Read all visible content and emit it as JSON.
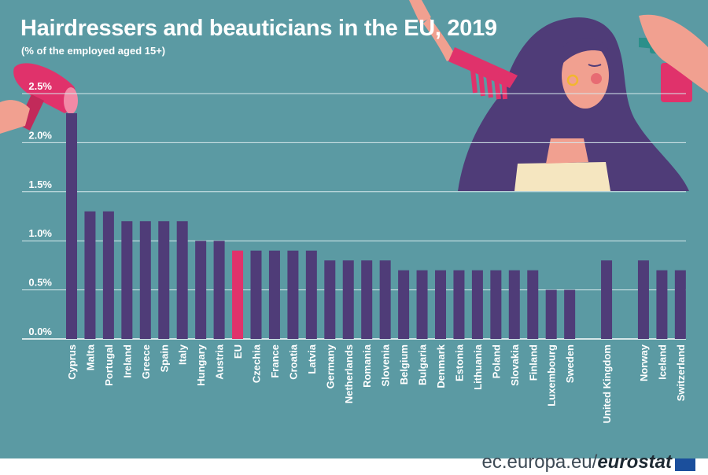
{
  "title": "Hairdressers and beauticians in the EU, 2019",
  "subtitle": "(% of the employed aged 15+)",
  "footer": {
    "domain": "ec.europa.eu/",
    "brand": "eurostat"
  },
  "colors": {
    "background": "#5b9aa3",
    "bar": "#4f3c78",
    "bar_highlight": "#e0326b",
    "grid": "#d6e8eb",
    "text": "#ffffff"
  },
  "chart_data": {
    "type": "bar",
    "title": "Hairdressers and beauticians in the EU, 2019",
    "subtitle": "(% of the employed aged 15+)",
    "xlabel": "",
    "ylabel": "",
    "ylim": [
      0,
      2.5
    ],
    "grid": true,
    "y_ticks": [
      "0.0%",
      "0.5%",
      "1.0%",
      "1.5%",
      "2.0%",
      "2.5%"
    ],
    "highlight": "EU",
    "categories": [
      "Cyprus",
      "Malta",
      "Portugal",
      "Ireland",
      "Greece",
      "Spain",
      "Italy",
      "Hungary",
      "Austria",
      "EU",
      "Czechia",
      "France",
      "Croatia",
      "Latvia",
      "Germany",
      "Netherlands",
      "Romania",
      "Slovenia",
      "Belgium",
      "Bulgaria",
      "Denmark",
      "Estonia",
      "Lithuania",
      "Poland",
      "Slovakia",
      "Finland",
      "Luxembourg",
      "Sweden",
      "United Kingdom",
      "Norway",
      "Iceland",
      "Switzerland"
    ],
    "values": [
      2.3,
      1.3,
      1.3,
      1.2,
      1.2,
      1.2,
      1.2,
      1.0,
      1.0,
      0.9,
      0.9,
      0.9,
      0.9,
      0.9,
      0.8,
      0.8,
      0.8,
      0.8,
      0.7,
      0.7,
      0.7,
      0.7,
      0.7,
      0.7,
      0.7,
      0.7,
      0.5,
      0.5,
      0.8,
      0.8,
      0.7,
      0.7
    ]
  }
}
